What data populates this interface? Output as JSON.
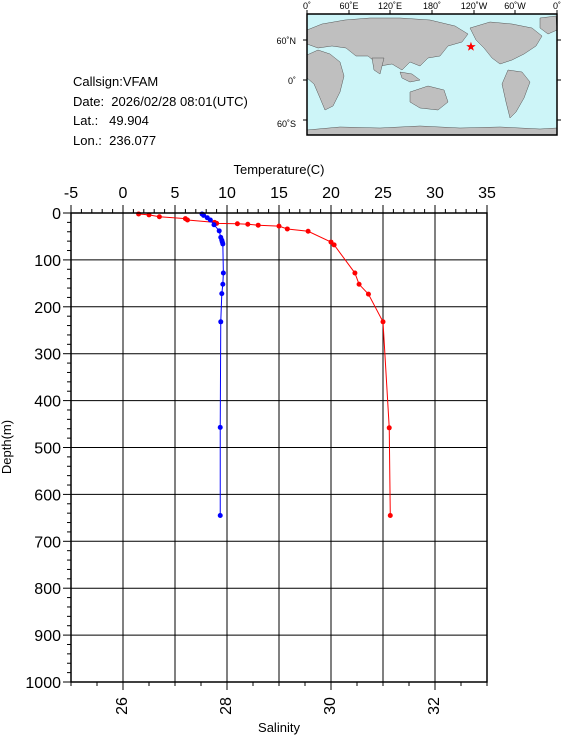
{
  "info": {
    "callsign": "Callsign:VFAM",
    "date": "Date:  2026/02/28 08:01(UTC)",
    "lat": "Lat.:   49.904",
    "lon": "Lon.:  236.077"
  },
  "map": {
    "lon_labels": [
      "0˚",
      "60˚E",
      "120˚E",
      "180˚",
      "120˚W",
      "60˚W",
      "0˚"
    ],
    "lat_labels": [
      "60˚N",
      "0˚",
      "60˚S"
    ],
    "ocean_color": "#cdf5f8",
    "land_color": "#bfbfbf",
    "station_marker": "red-star",
    "station_lat": 49.904,
    "station_lon": 236.077
  },
  "chart_data": {
    "type": "line",
    "top_axis": {
      "label": "Temperature(C)",
      "range": [
        -5,
        35
      ],
      "ticks": [
        "-5",
        "0",
        "5",
        "10",
        "15",
        "20",
        "25",
        "30",
        "35"
      ]
    },
    "bottom_axis": {
      "label": "Salinity",
      "range": [
        25,
        33
      ],
      "ticks": [
        "26",
        "28",
        "30",
        "32"
      ]
    },
    "y_axis": {
      "label": "Depth(m)",
      "range": [
        0,
        1000
      ],
      "inverted": true,
      "ticks": [
        "0",
        "100",
        "200",
        "300",
        "400",
        "500",
        "600",
        "700",
        "800",
        "900",
        "1000"
      ]
    },
    "grid": true,
    "series": [
      {
        "axis": "temperature",
        "color": "#ff0000",
        "points": [
          {
            "x": 1.5,
            "depth": 2
          },
          {
            "x": 2.5,
            "depth": 4
          },
          {
            "x": 3.5,
            "depth": 8
          },
          {
            "x": 6.0,
            "depth": 12
          },
          {
            "x": 6.2,
            "depth": 15
          },
          {
            "x": 8.8,
            "depth": 20
          },
          {
            "x": 9.0,
            "depth": 22
          },
          {
            "x": 11.0,
            "depth": 23
          },
          {
            "x": 12.0,
            "depth": 24
          },
          {
            "x": 13.0,
            "depth": 26
          },
          {
            "x": 15.0,
            "depth": 28
          },
          {
            "x": 15.8,
            "depth": 34
          },
          {
            "x": 17.8,
            "depth": 39
          },
          {
            "x": 20.0,
            "depth": 62
          },
          {
            "x": 20.3,
            "depth": 68
          },
          {
            "x": 22.3,
            "depth": 128
          },
          {
            "x": 22.7,
            "depth": 152
          },
          {
            "x": 23.6,
            "depth": 173
          },
          {
            "x": 25.0,
            "depth": 232
          },
          {
            "x": 25.6,
            "depth": 458
          },
          {
            "x": 25.7,
            "depth": 645
          }
        ]
      },
      {
        "axis": "salinity",
        "color": "#0000ff",
        "points": [
          {
            "x": 27.52,
            "depth": 2
          },
          {
            "x": 27.55,
            "depth": 5
          },
          {
            "x": 27.62,
            "depth": 10
          },
          {
            "x": 27.68,
            "depth": 15
          },
          {
            "x": 27.75,
            "depth": 25
          },
          {
            "x": 27.85,
            "depth": 38
          },
          {
            "x": 27.88,
            "depth": 52
          },
          {
            "x": 27.9,
            "depth": 58
          },
          {
            "x": 27.91,
            "depth": 62
          },
          {
            "x": 27.92,
            "depth": 66
          },
          {
            "x": 27.93,
            "depth": 128
          },
          {
            "x": 27.92,
            "depth": 152
          },
          {
            "x": 27.9,
            "depth": 172
          },
          {
            "x": 27.88,
            "depth": 232
          },
          {
            "x": 27.87,
            "depth": 457
          },
          {
            "x": 27.87,
            "depth": 645
          }
        ]
      }
    ]
  }
}
